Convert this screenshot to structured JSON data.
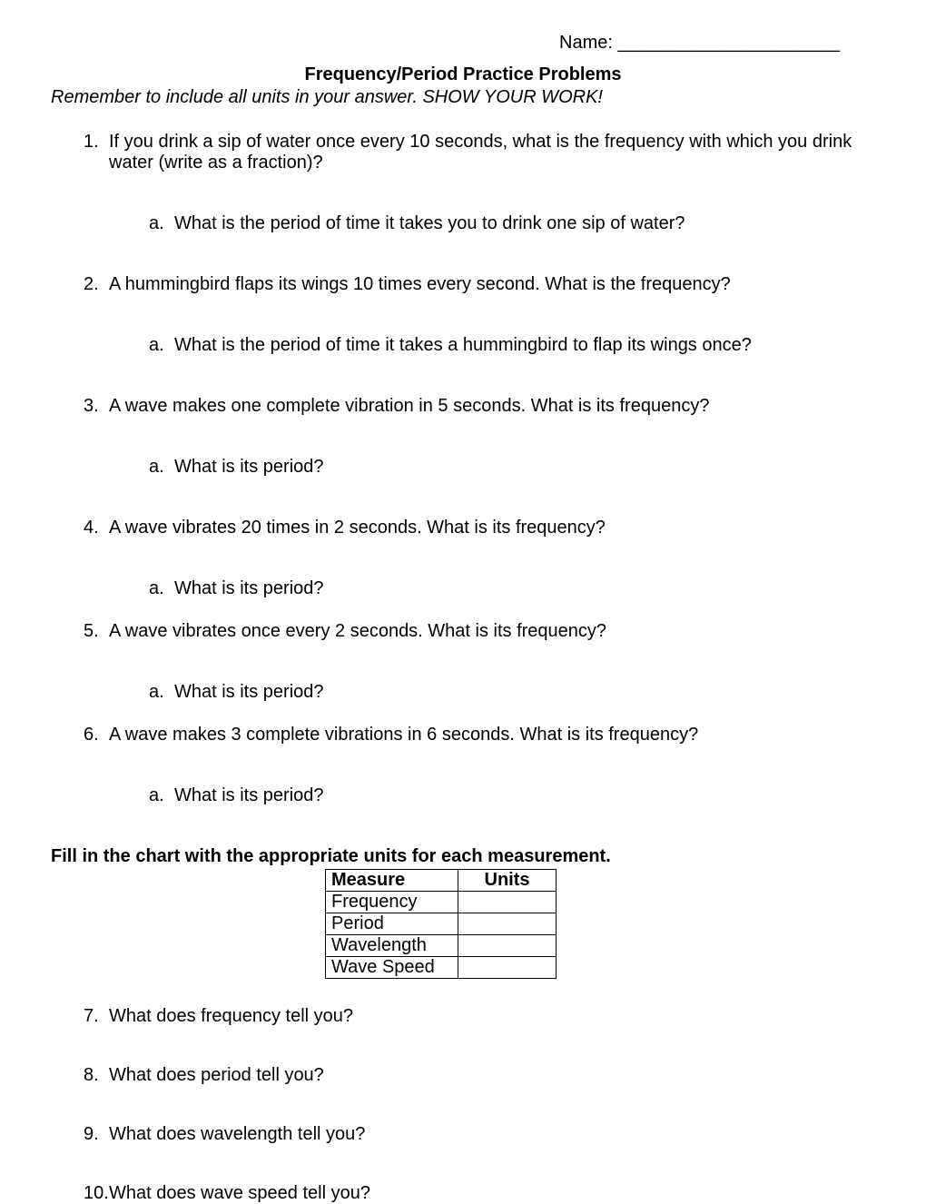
{
  "header": {
    "name_label": "Name: ______________________",
    "title": "Frequency/Period Practice Problems",
    "instruction": "Remember to include all units in your answer.  SHOW YOUR WORK!"
  },
  "problems": [
    {
      "num": "1.",
      "text": "If you drink a sip of water once every 10 seconds, what is the frequency with which you drink water (write as a fraction)?",
      "sub_num": "a.",
      "sub_text": "What is the period of time it takes you to drink one sip of water?",
      "spacing": "normal"
    },
    {
      "num": "2.",
      "text": "A hummingbird flaps its wings 10 times every second.  What is the frequency?",
      "sub_num": "a.",
      "sub_text": "What is the period of time it takes a hummingbird to flap its wings once?",
      "spacing": "normal"
    },
    {
      "num": "3.",
      "text": "A wave makes one complete vibration in 5 seconds.  What is its frequency?",
      "sub_num": "a.",
      "sub_text": "What is its period?",
      "spacing": "normal"
    },
    {
      "num": "4.",
      "text": "A wave vibrates 20 times in 2 seconds.  What is its frequency?",
      "sub_num": "a.",
      "sub_text": "What is its period?",
      "spacing": "tight"
    },
    {
      "num": "5.",
      "text": "A wave vibrates once every 2 seconds.  What is its frequency?",
      "sub_num": "a.",
      "sub_text": "What is its period?",
      "spacing": "tight"
    },
    {
      "num": "6.",
      "text": "A wave makes 3 complete vibrations in 6 seconds.  What is its frequency?",
      "sub_num": "a.",
      "sub_text": "What is its period?",
      "spacing": "normal"
    }
  ],
  "table_section": {
    "heading": "Fill in the chart with the appropriate units for each measurement.",
    "columns": [
      "Measure",
      "Units"
    ],
    "rows": [
      [
        "Frequency",
        ""
      ],
      [
        "Period",
        ""
      ],
      [
        "Wavelength",
        ""
      ],
      [
        "Wave Speed",
        ""
      ]
    ]
  },
  "questions": [
    {
      "num": "7.",
      "text": "What does frequency tell you?"
    },
    {
      "num": "8.",
      "text": "What does period tell you?"
    },
    {
      "num": "9.",
      "text": "What does wavelength tell you?"
    },
    {
      "num": "10.",
      "text": "What does wave speed tell you?"
    }
  ]
}
